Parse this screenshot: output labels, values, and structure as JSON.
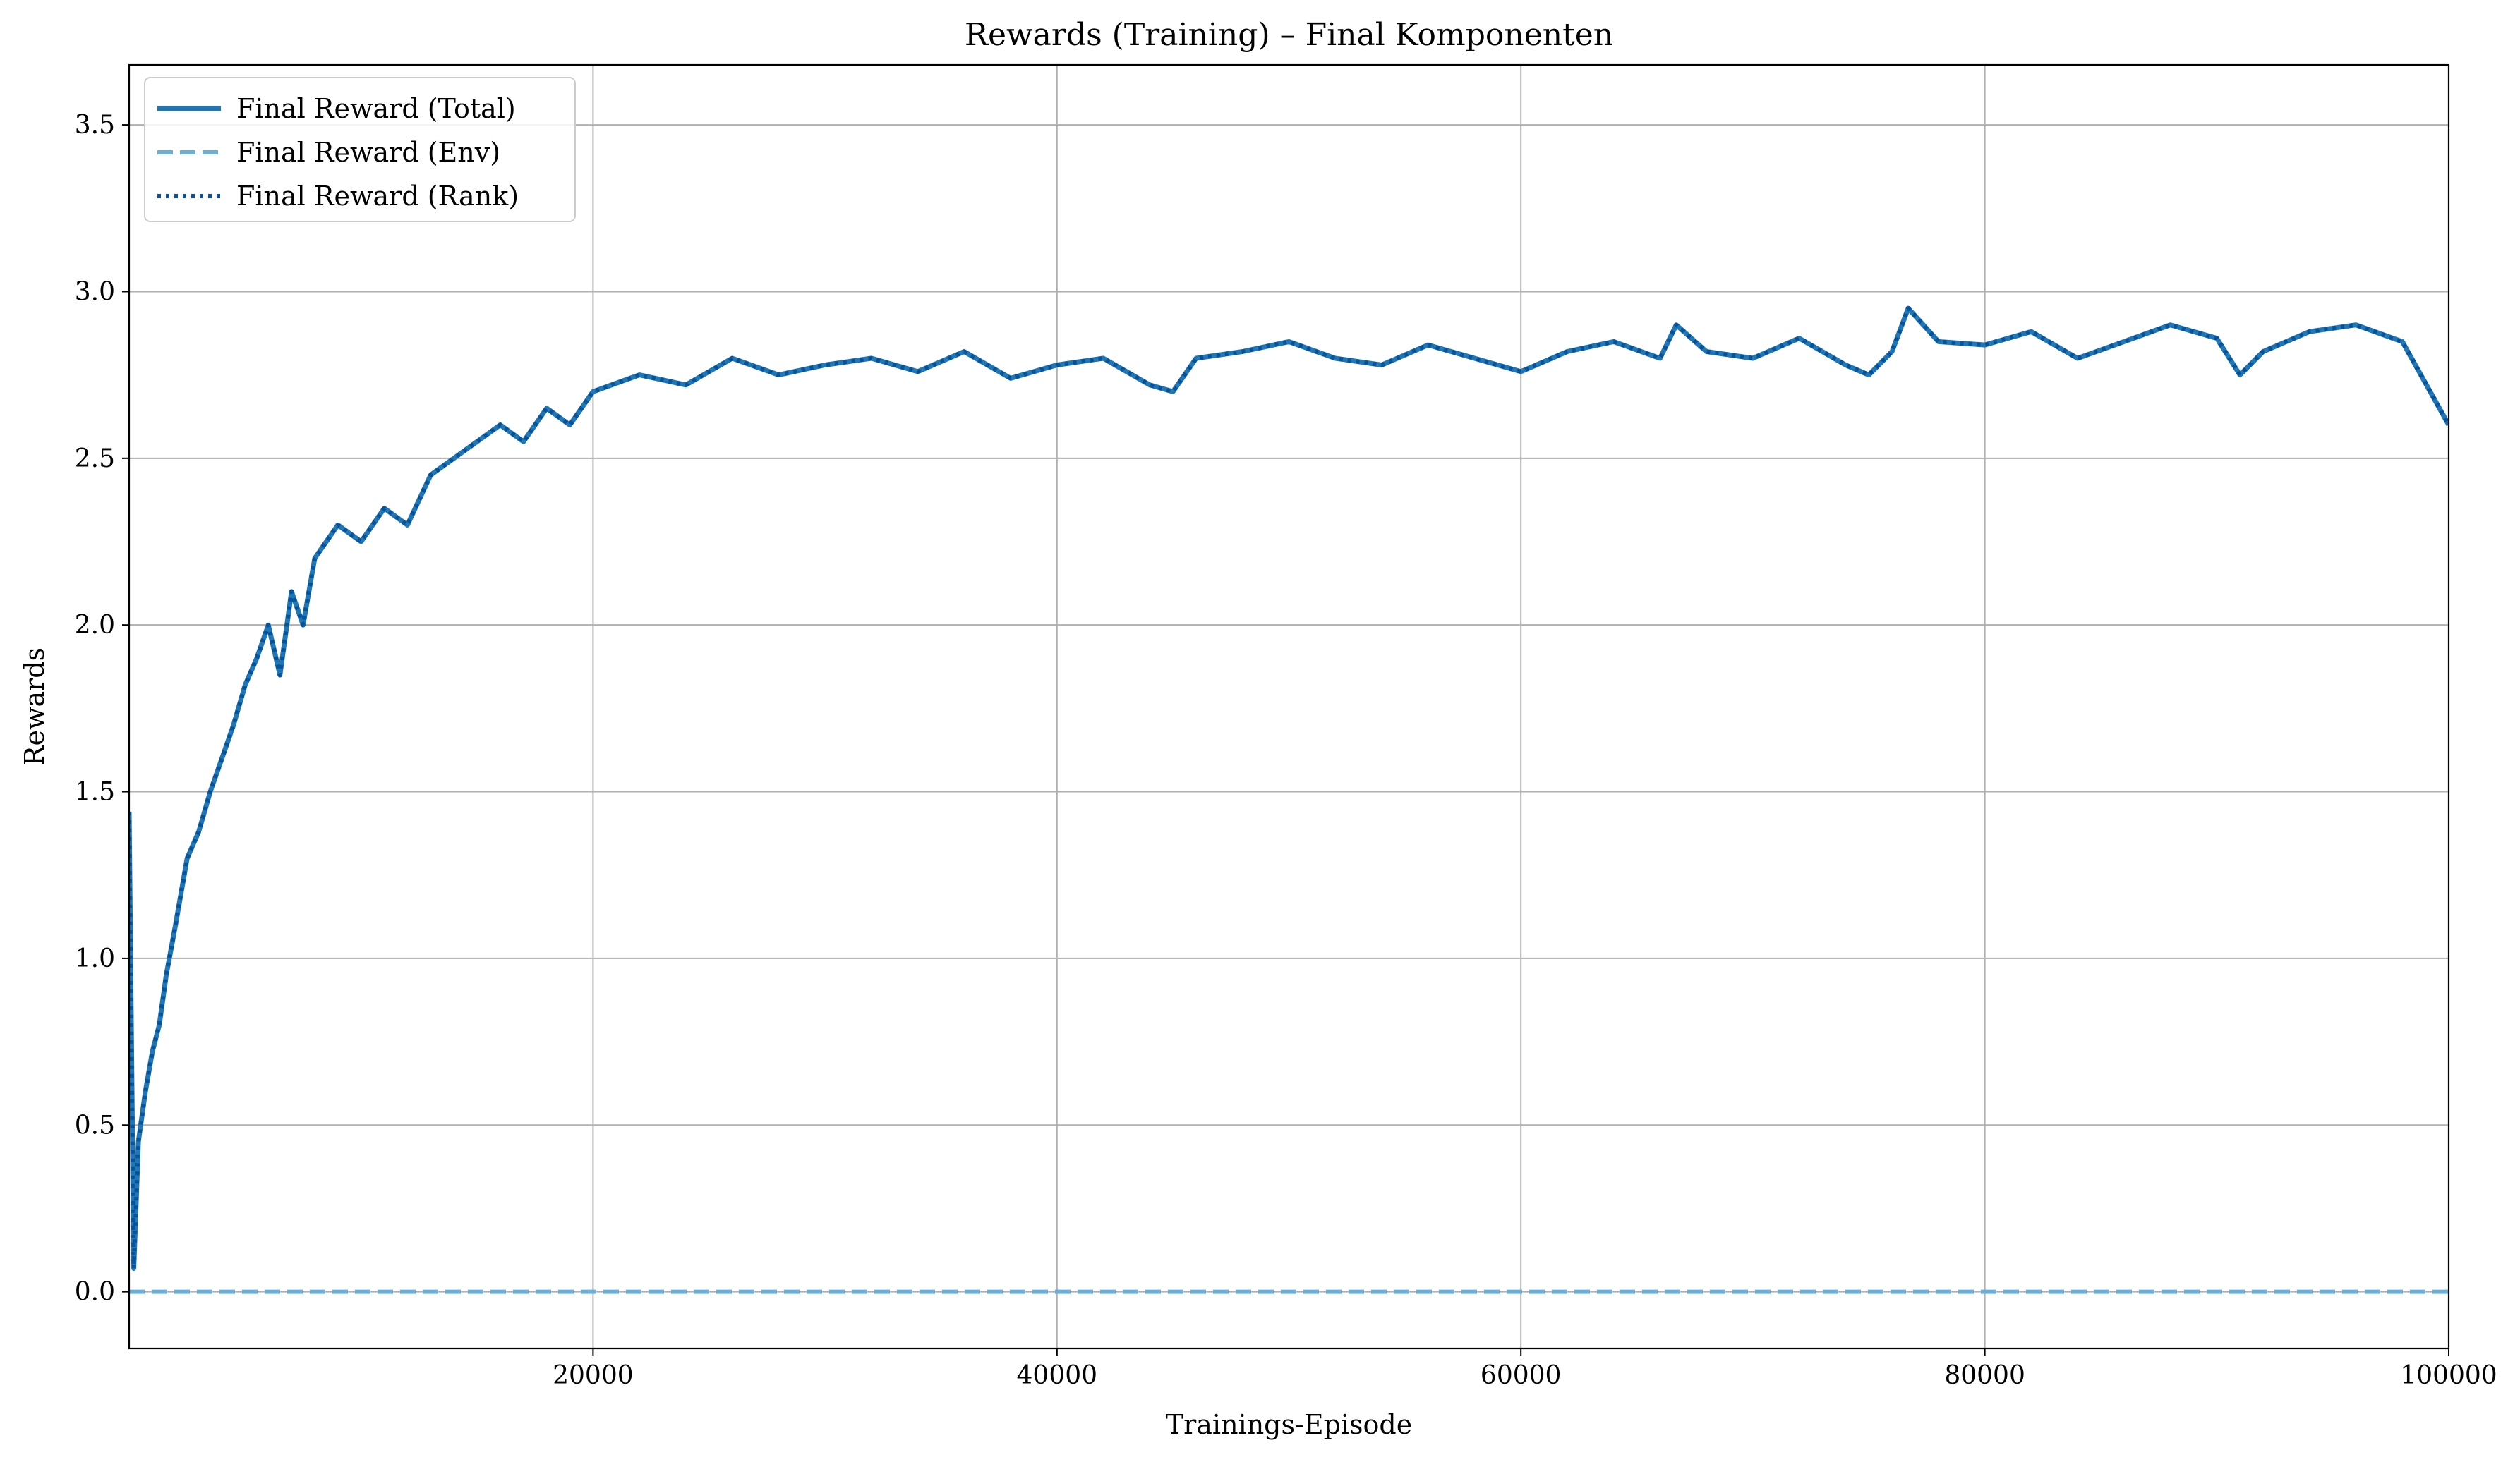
{
  "chart_data": {
    "type": "line",
    "title": "Rewards (Training) – Final Komponenten",
    "xlabel": "Trainings-Episode",
    "ylabel": "Rewards",
    "xlim": [
      0,
      100000
    ],
    "ylim": [
      -0.17,
      3.68
    ],
    "xticks": [
      20000,
      40000,
      60000,
      80000,
      100000
    ],
    "yticks": [
      0.0,
      0.5,
      1.0,
      1.5,
      2.0,
      2.5,
      3.0,
      3.5
    ],
    "xtick_labels": [
      "20000",
      "40000",
      "60000",
      "80000",
      "100000"
    ],
    "ytick_labels": [
      "0.0",
      "0.5",
      "1.0",
      "1.5",
      "2.0",
      "2.5",
      "3.0",
      "3.5"
    ],
    "grid": true,
    "legend_position": "top-left",
    "series": [
      {
        "name": "Final Reward (Total)",
        "style": "solid",
        "color": "#1f77b4",
        "x": [
          0,
          200,
          400,
          700,
          1000,
          1300,
          1600,
          2000,
          2500,
          3000,
          3500,
          4000,
          4500,
          5000,
          5500,
          6000,
          6500,
          7000,
          7500,
          8000,
          9000,
          10000,
          11000,
          12000,
          13000,
          14000,
          15000,
          16000,
          17000,
          18000,
          19000,
          20000,
          22000,
          24000,
          26000,
          28000,
          30000,
          32000,
          34000,
          36000,
          38000,
          40000,
          42000,
          44000,
          45000,
          46000,
          48000,
          50000,
          52000,
          54000,
          56000,
          58000,
          60000,
          62000,
          64000,
          66000,
          66700,
          68000,
          70000,
          72000,
          74000,
          75000,
          76000,
          76700,
          78000,
          80000,
          82000,
          84000,
          86000,
          88000,
          90000,
          91000,
          92000,
          94000,
          96000,
          98000,
          100000
        ],
        "y": [
          1.44,
          0.07,
          0.45,
          0.6,
          0.72,
          0.8,
          0.95,
          1.1,
          1.3,
          1.38,
          1.5,
          1.6,
          1.7,
          1.82,
          1.9,
          2.0,
          1.85,
          2.1,
          2.0,
          2.2,
          2.3,
          2.25,
          2.35,
          2.3,
          2.45,
          2.5,
          2.55,
          2.6,
          2.55,
          2.65,
          2.6,
          2.7,
          2.75,
          2.72,
          2.8,
          2.75,
          2.78,
          2.8,
          2.76,
          2.82,
          2.74,
          2.78,
          2.8,
          2.72,
          2.7,
          2.8,
          2.82,
          2.85,
          2.8,
          2.78,
          2.84,
          2.8,
          2.76,
          2.82,
          2.85,
          2.8,
          2.9,
          2.82,
          2.8,
          2.86,
          2.78,
          2.75,
          2.82,
          2.95,
          2.85,
          2.84,
          2.88,
          2.8,
          2.85,
          2.9,
          2.86,
          2.75,
          2.82,
          2.88,
          2.9,
          2.85,
          2.6
        ]
      },
      {
        "name": "Final Reward (Env)",
        "style": "dashed",
        "color": "#6baed6",
        "x": [
          0,
          100000
        ],
        "y": [
          0.0,
          0.0
        ]
      },
      {
        "name": "Final Reward (Rank)",
        "style": "dotted",
        "color": "#08519c",
        "x": [
          0,
          200,
          400,
          700,
          1000,
          1300,
          1600,
          2000,
          2500,
          3000,
          3500,
          4000,
          4500,
          5000,
          5500,
          6000,
          6500,
          7000,
          7500,
          8000,
          9000,
          10000,
          11000,
          12000,
          13000,
          14000,
          15000,
          16000,
          17000,
          18000,
          19000,
          20000,
          22000,
          24000,
          26000,
          28000,
          30000,
          32000,
          34000,
          36000,
          38000,
          40000,
          42000,
          44000,
          45000,
          46000,
          48000,
          50000,
          52000,
          54000,
          56000,
          58000,
          60000,
          62000,
          64000,
          66000,
          66700,
          68000,
          70000,
          72000,
          74000,
          75000,
          76000,
          76700,
          78000,
          80000,
          82000,
          84000,
          86000,
          88000,
          90000,
          91000,
          92000,
          94000,
          96000,
          98000,
          100000
        ],
        "y": [
          1.44,
          0.07,
          0.45,
          0.6,
          0.72,
          0.8,
          0.95,
          1.1,
          1.3,
          1.38,
          1.5,
          1.6,
          1.7,
          1.82,
          1.9,
          2.0,
          1.85,
          2.1,
          2.0,
          2.2,
          2.3,
          2.25,
          2.35,
          2.3,
          2.45,
          2.5,
          2.55,
          2.6,
          2.55,
          2.65,
          2.6,
          2.7,
          2.75,
          2.72,
          2.8,
          2.75,
          2.78,
          2.8,
          2.76,
          2.82,
          2.74,
          2.78,
          2.8,
          2.72,
          2.7,
          2.8,
          2.82,
          2.85,
          2.8,
          2.78,
          2.84,
          2.8,
          2.76,
          2.82,
          2.85,
          2.8,
          2.9,
          2.82,
          2.8,
          2.86,
          2.78,
          2.75,
          2.82,
          2.95,
          2.85,
          2.84,
          2.88,
          2.8,
          2.85,
          2.9,
          2.86,
          2.75,
          2.82,
          2.88,
          2.9,
          2.85,
          2.6
        ]
      }
    ]
  }
}
